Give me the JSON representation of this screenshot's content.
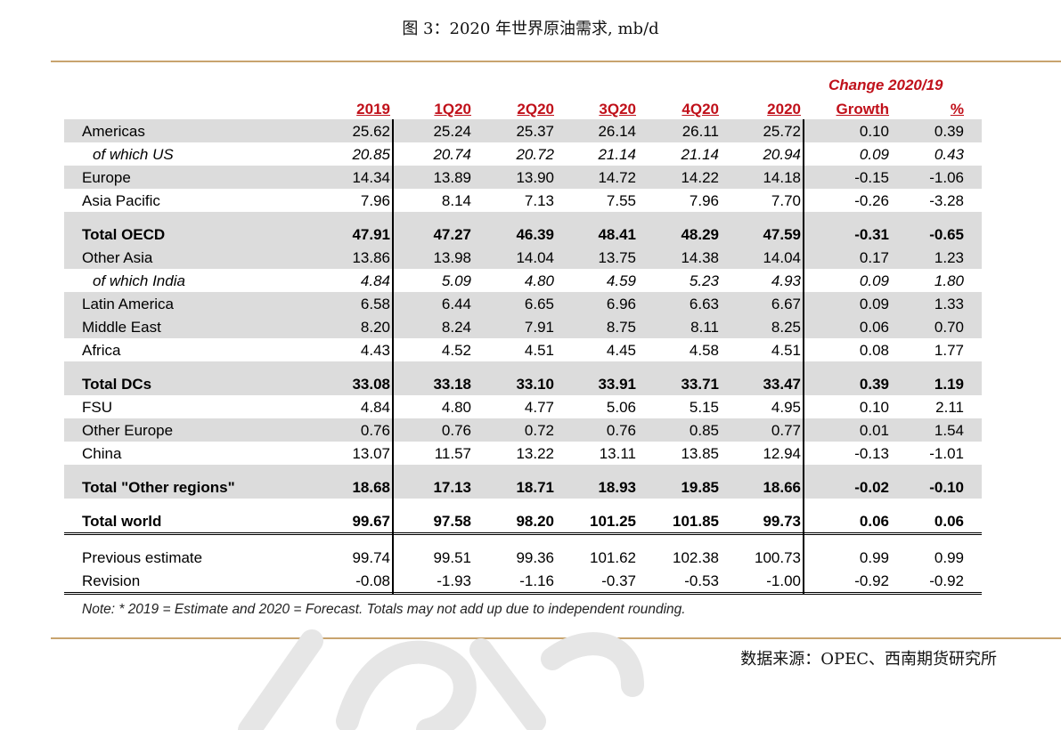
{
  "title": "图 3：2020 年世界原油需求, mb/d",
  "change_header": "Change 2020/19",
  "columns": [
    "2019",
    "1Q20",
    "2Q20",
    "3Q20",
    "4Q20",
    "2020",
    "Growth",
    "%"
  ],
  "rows": [
    {
      "label": "Americas",
      "values": [
        "25.62",
        "25.24",
        "25.37",
        "26.14",
        "26.11",
        "25.72",
        "0.10",
        "0.39"
      ]
    },
    {
      "label": "of which US",
      "values": [
        "20.85",
        "20.74",
        "20.72",
        "21.14",
        "21.14",
        "20.94",
        "0.09",
        "0.43"
      ]
    },
    {
      "label": "Europe",
      "values": [
        "14.34",
        "13.89",
        "13.90",
        "14.72",
        "14.22",
        "14.18",
        "-0.15",
        "-1.06"
      ]
    },
    {
      "label": "Asia Pacific",
      "values": [
        "7.96",
        "8.14",
        "7.13",
        "7.55",
        "7.96",
        "7.70",
        "-0.26",
        "-3.28"
      ]
    },
    {
      "label": "Total OECD",
      "values": [
        "47.91",
        "47.27",
        "46.39",
        "48.41",
        "48.29",
        "47.59",
        "-0.31",
        "-0.65"
      ]
    },
    {
      "label": "Other Asia",
      "values": [
        "13.86",
        "13.98",
        "14.04",
        "13.75",
        "14.38",
        "14.04",
        "0.17",
        "1.23"
      ]
    },
    {
      "label": "of which India",
      "values": [
        "4.84",
        "5.09",
        "4.80",
        "4.59",
        "5.23",
        "4.93",
        "0.09",
        "1.80"
      ]
    },
    {
      "label": "Latin America",
      "values": [
        "6.58",
        "6.44",
        "6.65",
        "6.96",
        "6.63",
        "6.67",
        "0.09",
        "1.33"
      ]
    },
    {
      "label": "Middle East",
      "values": [
        "8.20",
        "8.24",
        "7.91",
        "8.75",
        "8.11",
        "8.25",
        "0.06",
        "0.70"
      ]
    },
    {
      "label": "Africa",
      "values": [
        "4.43",
        "4.52",
        "4.51",
        "4.45",
        "4.58",
        "4.51",
        "0.08",
        "1.77"
      ]
    },
    {
      "label": "Total DCs",
      "values": [
        "33.08",
        "33.18",
        "33.10",
        "33.91",
        "33.71",
        "33.47",
        "0.39",
        "1.19"
      ]
    },
    {
      "label": "FSU",
      "values": [
        "4.84",
        "4.80",
        "4.77",
        "5.06",
        "5.15",
        "4.95",
        "0.10",
        "2.11"
      ]
    },
    {
      "label": "Other Europe",
      "values": [
        "0.76",
        "0.76",
        "0.72",
        "0.76",
        "0.85",
        "0.77",
        "0.01",
        "1.54"
      ]
    },
    {
      "label": "China",
      "values": [
        "13.07",
        "11.57",
        "13.22",
        "13.11",
        "13.85",
        "12.94",
        "-0.13",
        "-1.01"
      ]
    },
    {
      "label": "Total \"Other regions\"",
      "values": [
        "18.68",
        "17.13",
        "18.71",
        "18.93",
        "19.85",
        "18.66",
        "-0.02",
        "-0.10"
      ]
    },
    {
      "label": "Total world",
      "values": [
        "99.67",
        "97.58",
        "98.20",
        "101.25",
        "101.85",
        "99.73",
        "0.06",
        "0.06"
      ]
    },
    {
      "label": "Previous estimate",
      "values": [
        "99.74",
        "99.51",
        "99.36",
        "101.62",
        "102.38",
        "100.73",
        "0.99",
        "0.99"
      ]
    },
    {
      "label": "Revision",
      "values": [
        "-0.08",
        "-1.93",
        "-1.16",
        "-0.37",
        "-0.53",
        "-1.00",
        "-0.92",
        "-0.92"
      ]
    }
  ],
  "note": "Note: * 2019 = Estimate and 2020 = Forecast. Totals may not add up due to independent rounding.",
  "source": "数据来源：OPEC、西南期货研究所",
  "colors": {
    "accent_red": "#c0101a",
    "rule_gold": "#c8a46e",
    "shade_gray": "#dcdcdc"
  }
}
